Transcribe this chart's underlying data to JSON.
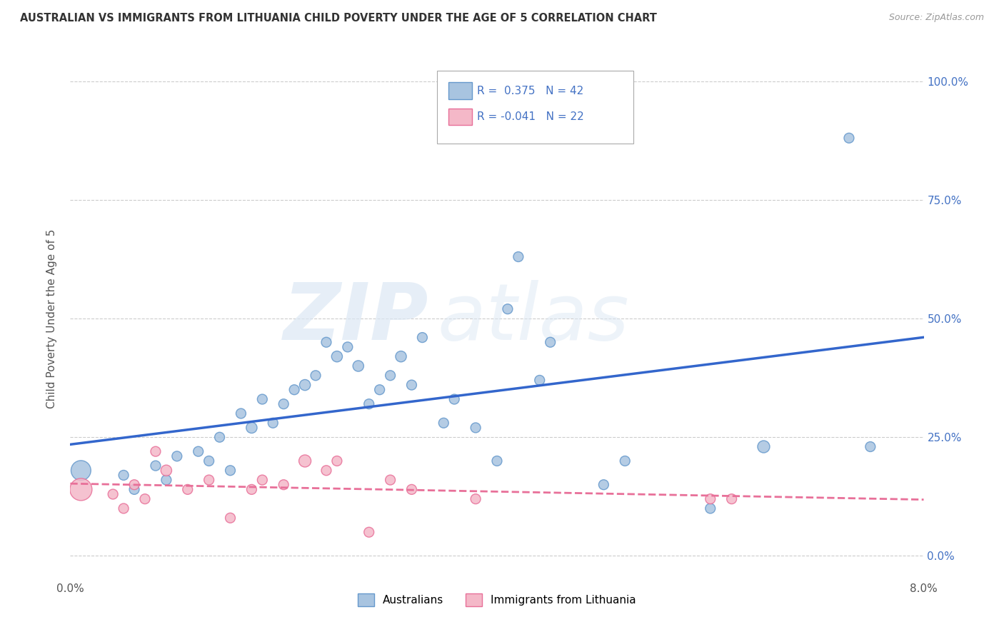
{
  "title": "AUSTRALIAN VS IMMIGRANTS FROM LITHUANIA CHILD POVERTY UNDER THE AGE OF 5 CORRELATION CHART",
  "source": "Source: ZipAtlas.com",
  "ylabel": "Child Poverty Under the Age of 5",
  "xmin": 0.0,
  "xmax": 0.08,
  "ymin": -5.0,
  "ymax": 105.0,
  "yticks": [
    0.0,
    25.0,
    50.0,
    75.0,
    100.0
  ],
  "ytick_labels": [
    "0.0%",
    "25.0%",
    "50.0%",
    "75.0%",
    "100.0%"
  ],
  "xticks": [
    0.0,
    0.02,
    0.04,
    0.06,
    0.08
  ],
  "xtick_labels": [
    "0.0%",
    "",
    "",
    "",
    "8.0%"
  ],
  "series1_label": "Australians",
  "series1_color": "#a8c4e0",
  "series1_edge_color": "#6699cc",
  "series1_R": 0.375,
  "series1_N": 42,
  "series1_trend_color": "#3366cc",
  "series2_label": "Immigrants from Lithuania",
  "series2_color": "#f4b8c8",
  "series2_edge_color": "#e87099",
  "series2_R": -0.041,
  "series2_N": 22,
  "series2_trend_color": "#e87099",
  "background_color": "#ffffff",
  "grid_color": "#cccccc",
  "aus_x": [
    0.001,
    0.005,
    0.006,
    0.008,
    0.009,
    0.01,
    0.012,
    0.013,
    0.014,
    0.015,
    0.016,
    0.017,
    0.018,
    0.019,
    0.02,
    0.021,
    0.022,
    0.023,
    0.024,
    0.025,
    0.026,
    0.027,
    0.028,
    0.029,
    0.03,
    0.031,
    0.032,
    0.033,
    0.035,
    0.036,
    0.038,
    0.04,
    0.041,
    0.042,
    0.044,
    0.045,
    0.05,
    0.052,
    0.06,
    0.065,
    0.073,
    0.075
  ],
  "aus_y": [
    18,
    17,
    14,
    19,
    16,
    21,
    22,
    20,
    25,
    18,
    30,
    27,
    33,
    28,
    32,
    35,
    36,
    38,
    45,
    42,
    44,
    40,
    32,
    35,
    38,
    42,
    36,
    46,
    28,
    33,
    27,
    20,
    52,
    63,
    37,
    45,
    15,
    20,
    10,
    23,
    88,
    23
  ],
  "aus_sizes": [
    400,
    100,
    100,
    100,
    100,
    100,
    100,
    100,
    100,
    100,
    100,
    120,
    100,
    100,
    100,
    100,
    120,
    100,
    100,
    120,
    100,
    120,
    100,
    100,
    100,
    120,
    100,
    100,
    100,
    100,
    100,
    100,
    100,
    100,
    100,
    100,
    100,
    100,
    100,
    150,
    100,
    100
  ],
  "lit_x": [
    0.001,
    0.004,
    0.005,
    0.006,
    0.007,
    0.008,
    0.009,
    0.011,
    0.013,
    0.015,
    0.017,
    0.018,
    0.02,
    0.022,
    0.024,
    0.025,
    0.028,
    0.03,
    0.032,
    0.038,
    0.06,
    0.062
  ],
  "lit_y": [
    14,
    13,
    10,
    15,
    12,
    22,
    18,
    14,
    16,
    8,
    14,
    16,
    15,
    20,
    18,
    20,
    5,
    16,
    14,
    12,
    12,
    12
  ],
  "lit_sizes": [
    500,
    100,
    100,
    100,
    100,
    100,
    120,
    100,
    100,
    100,
    100,
    100,
    100,
    150,
    100,
    100,
    100,
    100,
    100,
    100,
    100,
    100
  ]
}
